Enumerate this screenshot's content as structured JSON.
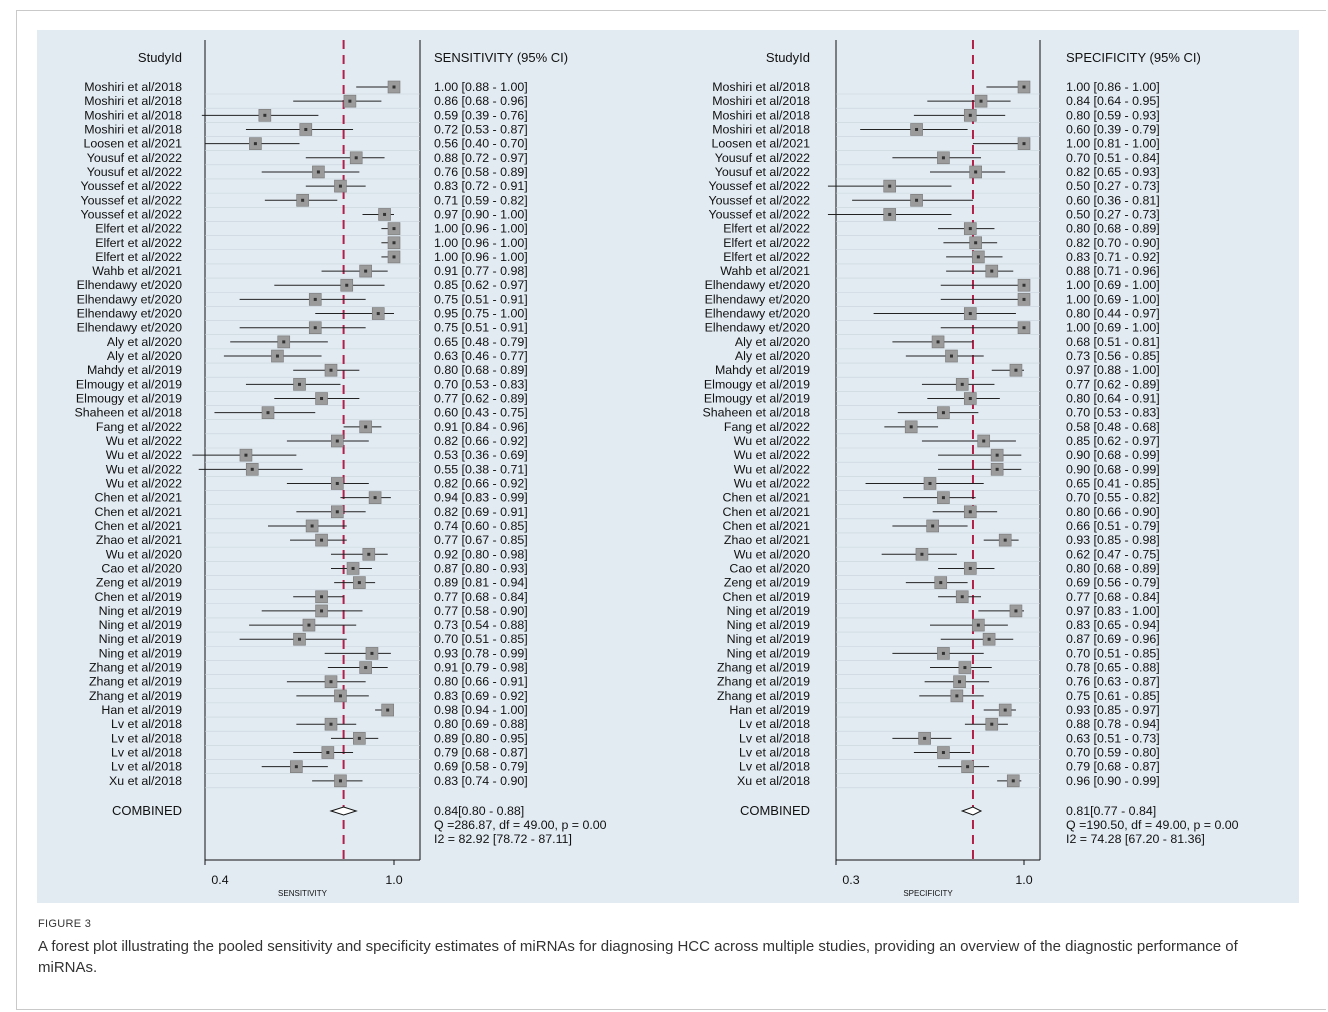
{
  "figure": {
    "label": "FIGURE 3",
    "caption": "A forest plot illustrating the pooled sensitivity and specificity estimates of miRNAs for diagnosing HCC across multiple studies, providing an overview of the diagnostic performance of miRNAs."
  },
  "chart_data": [
    {
      "type": "forest",
      "study_header": "StudyId",
      "ci_header": "SENSITIVITY (95% CI)",
      "xlabel": "SENSITIVITY",
      "ticks": [
        "0.4",
        "1.0"
      ],
      "xlim": [
        0.4,
        1.0
      ],
      "pooled_line": 0.84,
      "studies": [
        "Moshiri et al/2018",
        "Moshiri et al/2018",
        "Moshiri et al/2018",
        "Moshiri et al/2018",
        "Loosen et al/2021",
        "Yousuf et al/2022",
        "Yousuf et al/2022",
        "Youssef et al/2022",
        "Youssef et al/2022",
        "Youssef et al/2022",
        "Elfert et al/2022",
        "Elfert et al/2022",
        "Elfert et al/2022",
        "Wahb et al/2021",
        "Elhendawy et/2020",
        "Elhendawy et/2020",
        "Elhendawy et/2020",
        "Elhendawy et/2020",
        "Aly et al/2020",
        "Aly et al/2020",
        "Mahdy et al/2019",
        "Elmougy et al/2019",
        "Elmougy et al/2019",
        "Shaheen et al/2018",
        "Fang et al/2022",
        "Wu et al/2022",
        "Wu et al/2022",
        "Wu et al/2022",
        "Wu et al/2022",
        "Chen et al/2021",
        "Chen et al/2021",
        "Chen et al/2021",
        "Zhao et al/2021",
        "Wu et al/2020",
        "Cao et al/2020",
        "Zeng et al/2019",
        "Chen et al/2019",
        "Ning et al/2019",
        "Ning et al/2019",
        "Ning et al/2019",
        "Ning et al/2019",
        "Zhang et al/2019",
        "Zhang et al/2019",
        "Zhang et al/2019",
        "Han et al/2019",
        "Lv et al/2018",
        "Lv et al/2018",
        "Lv et al/2018",
        "Lv et al/2018",
        "Xu et al/2018"
      ],
      "estimates": [
        1.0,
        0.86,
        0.59,
        0.72,
        0.56,
        0.88,
        0.76,
        0.83,
        0.71,
        0.97,
        1.0,
        1.0,
        1.0,
        0.91,
        0.85,
        0.75,
        0.95,
        0.75,
        0.65,
        0.63,
        0.8,
        0.7,
        0.77,
        0.6,
        0.91,
        0.82,
        0.53,
        0.55,
        0.82,
        0.94,
        0.82,
        0.74,
        0.77,
        0.92,
        0.87,
        0.89,
        0.77,
        0.77,
        0.73,
        0.7,
        0.93,
        0.91,
        0.8,
        0.83,
        0.98,
        0.8,
        0.89,
        0.79,
        0.69,
        0.83
      ],
      "lower": [
        0.88,
        0.68,
        0.39,
        0.53,
        0.4,
        0.72,
        0.58,
        0.72,
        0.59,
        0.9,
        0.96,
        0.96,
        0.96,
        0.77,
        0.62,
        0.51,
        0.75,
        0.51,
        0.48,
        0.46,
        0.68,
        0.53,
        0.62,
        0.43,
        0.84,
        0.66,
        0.36,
        0.38,
        0.66,
        0.83,
        0.69,
        0.6,
        0.67,
        0.8,
        0.8,
        0.81,
        0.68,
        0.58,
        0.54,
        0.51,
        0.78,
        0.79,
        0.66,
        0.69,
        0.94,
        0.69,
        0.8,
        0.68,
        0.58,
        0.74
      ],
      "upper": [
        1.0,
        0.96,
        0.76,
        0.87,
        0.7,
        0.97,
        0.89,
        0.91,
        0.82,
        1.0,
        1.0,
        1.0,
        1.0,
        0.98,
        0.97,
        0.91,
        1.0,
        0.91,
        0.79,
        0.77,
        0.89,
        0.83,
        0.89,
        0.75,
        0.96,
        0.92,
        0.69,
        0.71,
        0.92,
        0.99,
        0.91,
        0.85,
        0.85,
        0.98,
        0.93,
        0.94,
        0.84,
        0.9,
        0.88,
        0.85,
        0.99,
        0.98,
        0.91,
        0.92,
        1.0,
        0.88,
        0.95,
        0.87,
        0.79,
        0.9
      ],
      "ci_text": [
        "1.00 [0.88 - 1.00]",
        "0.86 [0.68 - 0.96]",
        "0.59 [0.39 - 0.76]",
        "0.72 [0.53 - 0.87]",
        "0.56 [0.40 - 0.70]",
        "0.88 [0.72 - 0.97]",
        "0.76 [0.58 - 0.89]",
        "0.83 [0.72 - 0.91]",
        "0.71 [0.59 - 0.82]",
        "0.97 [0.90 - 1.00]",
        "1.00 [0.96 - 1.00]",
        "1.00 [0.96 - 1.00]",
        "1.00 [0.96 - 1.00]",
        "0.91 [0.77 - 0.98]",
        "0.85 [0.62 - 0.97]",
        "0.75 [0.51 - 0.91]",
        "0.95 [0.75 - 1.00]",
        "0.75 [0.51 - 0.91]",
        "0.65 [0.48 - 0.79]",
        "0.63 [0.46 - 0.77]",
        "0.80 [0.68 - 0.89]",
        "0.70 [0.53 - 0.83]",
        "0.77 [0.62 - 0.89]",
        "0.60 [0.43 - 0.75]",
        "0.91 [0.84 - 0.96]",
        "0.82 [0.66 - 0.92]",
        "0.53 [0.36 - 0.69]",
        "0.55 [0.38 - 0.71]",
        "0.82 [0.66 - 0.92]",
        "0.94 [0.83 - 0.99]",
        "0.82 [0.69 - 0.91]",
        "0.74 [0.60 - 0.85]",
        "0.77 [0.67 - 0.85]",
        "0.92 [0.80 - 0.98]",
        "0.87 [0.80 - 0.93]",
        "0.89 [0.81 - 0.94]",
        "0.77 [0.68 - 0.84]",
        "0.77 [0.58 - 0.90]",
        "0.73 [0.54 - 0.88]",
        "0.70 [0.51 - 0.85]",
        "0.93 [0.78 - 0.99]",
        "0.91 [0.79 - 0.98]",
        "0.80 [0.66 - 0.91]",
        "0.83 [0.69 - 0.92]",
        "0.98 [0.94 - 1.00]",
        "0.80 [0.69 - 0.88]",
        "0.89 [0.80 - 0.95]",
        "0.79 [0.68 - 0.87]",
        "0.69 [0.58 - 0.79]",
        "0.83 [0.74 - 0.90]"
      ],
      "combined": {
        "label": "COMBINED",
        "estimate": 0.84,
        "lower": 0.8,
        "upper": 0.88,
        "text": "0.84[0.80 - 0.88]",
        "q_text": "Q =286.87, df = 49.00, p =  0.00",
        "i2_text": "I2 = 82.92 [78.72 - 87.11]"
      }
    },
    {
      "type": "forest",
      "study_header": "StudyId",
      "ci_header": "SPECIFICITY (95% CI)",
      "xlabel": "SPECIFICITY",
      "ticks": [
        "0.3",
        "1.0"
      ],
      "xlim": [
        0.3,
        1.0
      ],
      "pooled_line": 0.81,
      "studies": [
        "Moshiri et al/2018",
        "Moshiri et al/2018",
        "Moshiri et al/2018",
        "Moshiri et al/2018",
        "Loosen et al/2021",
        "Yousuf et al/2022",
        "Yousuf et al/2022",
        "Youssef et al/2022",
        "Youssef et al/2022",
        "Youssef et al/2022",
        "Elfert et al/2022",
        "Elfert et al/2022",
        "Elfert et al/2022",
        "Wahb et al/2021",
        "Elhendawy et/2020",
        "Elhendawy et/2020",
        "Elhendawy et/2020",
        "Elhendawy et/2020",
        "Aly et al/2020",
        "Aly et al/2020",
        "Mahdy et al/2019",
        "Elmougy et al/2019",
        "Elmougy et al/2019",
        "Shaheen et al/2018",
        "Fang et al/2022",
        "Wu et al/2022",
        "Wu et al/2022",
        "Wu et al/2022",
        "Wu et al/2022",
        "Chen et al/2021",
        "Chen et al/2021",
        "Chen et al/2021",
        "Zhao et al/2021",
        "Wu et al/2020",
        "Cao et al/2020",
        "Zeng et al/2019",
        "Chen et al/2019",
        "Ning et al/2019",
        "Ning et al/2019",
        "Ning et al/2019",
        "Ning et al/2019",
        "Zhang et al/2019",
        "Zhang et al/2019",
        "Zhang et al/2019",
        "Han et al/2019",
        "Lv et al/2018",
        "Lv et al/2018",
        "Lv et al/2018",
        "Lv et al/2018",
        "Xu et al/2018"
      ],
      "estimates": [
        1.0,
        0.84,
        0.8,
        0.6,
        1.0,
        0.7,
        0.82,
        0.5,
        0.6,
        0.5,
        0.8,
        0.82,
        0.83,
        0.88,
        1.0,
        1.0,
        0.8,
        1.0,
        0.68,
        0.73,
        0.97,
        0.77,
        0.8,
        0.7,
        0.58,
        0.85,
        0.9,
        0.9,
        0.65,
        0.7,
        0.8,
        0.66,
        0.93,
        0.62,
        0.8,
        0.69,
        0.77,
        0.97,
        0.83,
        0.87,
        0.7,
        0.78,
        0.76,
        0.75,
        0.93,
        0.88,
        0.63,
        0.7,
        0.79,
        0.96
      ],
      "lower": [
        0.86,
        0.64,
        0.59,
        0.39,
        0.81,
        0.51,
        0.65,
        0.27,
        0.36,
        0.27,
        0.68,
        0.7,
        0.71,
        0.71,
        0.69,
        0.69,
        0.44,
        0.69,
        0.51,
        0.56,
        0.88,
        0.62,
        0.64,
        0.53,
        0.48,
        0.62,
        0.68,
        0.68,
        0.41,
        0.55,
        0.66,
        0.51,
        0.85,
        0.47,
        0.68,
        0.56,
        0.68,
        0.83,
        0.65,
        0.69,
        0.51,
        0.65,
        0.63,
        0.61,
        0.85,
        0.78,
        0.51,
        0.59,
        0.68,
        0.9
      ],
      "upper": [
        1.0,
        0.95,
        0.93,
        0.79,
        1.0,
        0.84,
        0.93,
        0.73,
        0.81,
        0.73,
        0.89,
        0.9,
        0.92,
        0.96,
        1.0,
        1.0,
        0.97,
        1.0,
        0.81,
        0.85,
        1.0,
        0.89,
        0.91,
        0.83,
        0.68,
        0.97,
        0.99,
        0.99,
        0.85,
        0.82,
        0.9,
        0.79,
        0.98,
        0.75,
        0.89,
        0.79,
        0.84,
        1.0,
        0.94,
        0.96,
        0.85,
        0.88,
        0.87,
        0.85,
        0.97,
        0.94,
        0.73,
        0.8,
        0.87,
        0.99
      ],
      "ci_text": [
        "1.00 [0.86 - 1.00]",
        "0.84 [0.64 - 0.95]",
        "0.80 [0.59 - 0.93]",
        "0.60 [0.39 - 0.79]",
        "1.00 [0.81 - 1.00]",
        "0.70 [0.51 - 0.84]",
        "0.82 [0.65 - 0.93]",
        "0.50 [0.27 - 0.73]",
        "0.60 [0.36 - 0.81]",
        "0.50 [0.27 - 0.73]",
        "0.80 [0.68 - 0.89]",
        "0.82 [0.70 - 0.90]",
        "0.83 [0.71 - 0.92]",
        "0.88 [0.71 - 0.96]",
        "1.00 [0.69 - 1.00]",
        "1.00 [0.69 - 1.00]",
        "0.80 [0.44 - 0.97]",
        "1.00 [0.69 - 1.00]",
        "0.68 [0.51 - 0.81]",
        "0.73 [0.56 - 0.85]",
        "0.97 [0.88 - 1.00]",
        "0.77 [0.62 - 0.89]",
        "0.80 [0.64 - 0.91]",
        "0.70 [0.53 - 0.83]",
        "0.58 [0.48 - 0.68]",
        "0.85 [0.62 - 0.97]",
        "0.90 [0.68 - 0.99]",
        "0.90 [0.68 - 0.99]",
        "0.65 [0.41 - 0.85]",
        "0.70 [0.55 - 0.82]",
        "0.80 [0.66 - 0.90]",
        "0.66 [0.51 - 0.79]",
        "0.93 [0.85 - 0.98]",
        "0.62 [0.47 - 0.75]",
        "0.80 [0.68 - 0.89]",
        "0.69 [0.56 - 0.79]",
        "0.77 [0.68 - 0.84]",
        "0.97 [0.83 - 1.00]",
        "0.83 [0.65 - 0.94]",
        "0.87 [0.69 - 0.96]",
        "0.70 [0.51 - 0.85]",
        "0.78 [0.65 - 0.88]",
        "0.76 [0.63 - 0.87]",
        "0.75 [0.61 - 0.85]",
        "0.93 [0.85 - 0.97]",
        "0.88 [0.78 - 0.94]",
        "0.63 [0.51 - 0.73]",
        "0.70 [0.59 - 0.80]",
        "0.79 [0.68 - 0.87]",
        "0.96 [0.90 - 0.99]"
      ],
      "combined": {
        "label": "COMBINED",
        "estimate": 0.81,
        "lower": 0.77,
        "upper": 0.84,
        "text": "0.81[0.77 - 0.84]",
        "q_text": "Q =190.50, df = 49.00, p =  0.00",
        "i2_text": "I2 = 74.28 [67.20 - 81.36]"
      }
    }
  ],
  "colors": {
    "panel_bg": "#e2ebf2",
    "pooled_line": "#b0204a",
    "marker_fill": "#9b9b9b",
    "text": "#111111"
  }
}
